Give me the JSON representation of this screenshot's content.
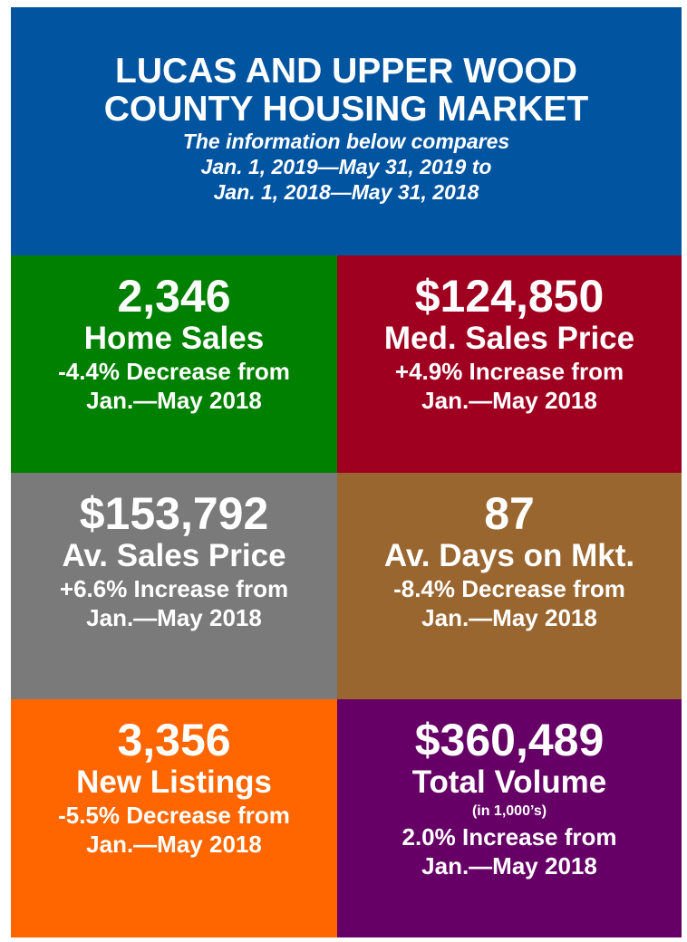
{
  "header": {
    "title": [
      "LUCAS AND UPPER WOOD",
      "COUNTY HOUSING MARKET"
    ],
    "subtitle": [
      "The information below compares",
      "Jan. 1, 2019—May 31, 2019 to",
      "Jan. 1, 2018—May 31, 2018"
    ]
  },
  "tiles": [
    {
      "value": "2,346",
      "label": "Home Sales",
      "change": "-4.4% Decrease from",
      "period": "Jan.—May 2018"
    },
    {
      "value": "$124,850",
      "label": "Med. Sales Price",
      "change": "+4.9% Increase from",
      "period": "Jan.—May 2018"
    },
    {
      "value": "$153,792",
      "label": "Av. Sales Price",
      "change": "+6.6% Increase from",
      "period": "Jan.—May 2018"
    },
    {
      "value": "87",
      "label": "Av. Days on Mkt.",
      "change": "-8.4% Decrease from",
      "period": "Jan.—May 2018"
    },
    {
      "value": "3,356",
      "label": "New Listings",
      "change": "-5.5% Decrease from",
      "period": "Jan.—May 2018"
    },
    {
      "value": "$360,489",
      "label": "Total Volume",
      "note": "(in 1,000’s)",
      "change": "2.0% Increase from",
      "period": "Jan.—May 2018"
    }
  ]
}
